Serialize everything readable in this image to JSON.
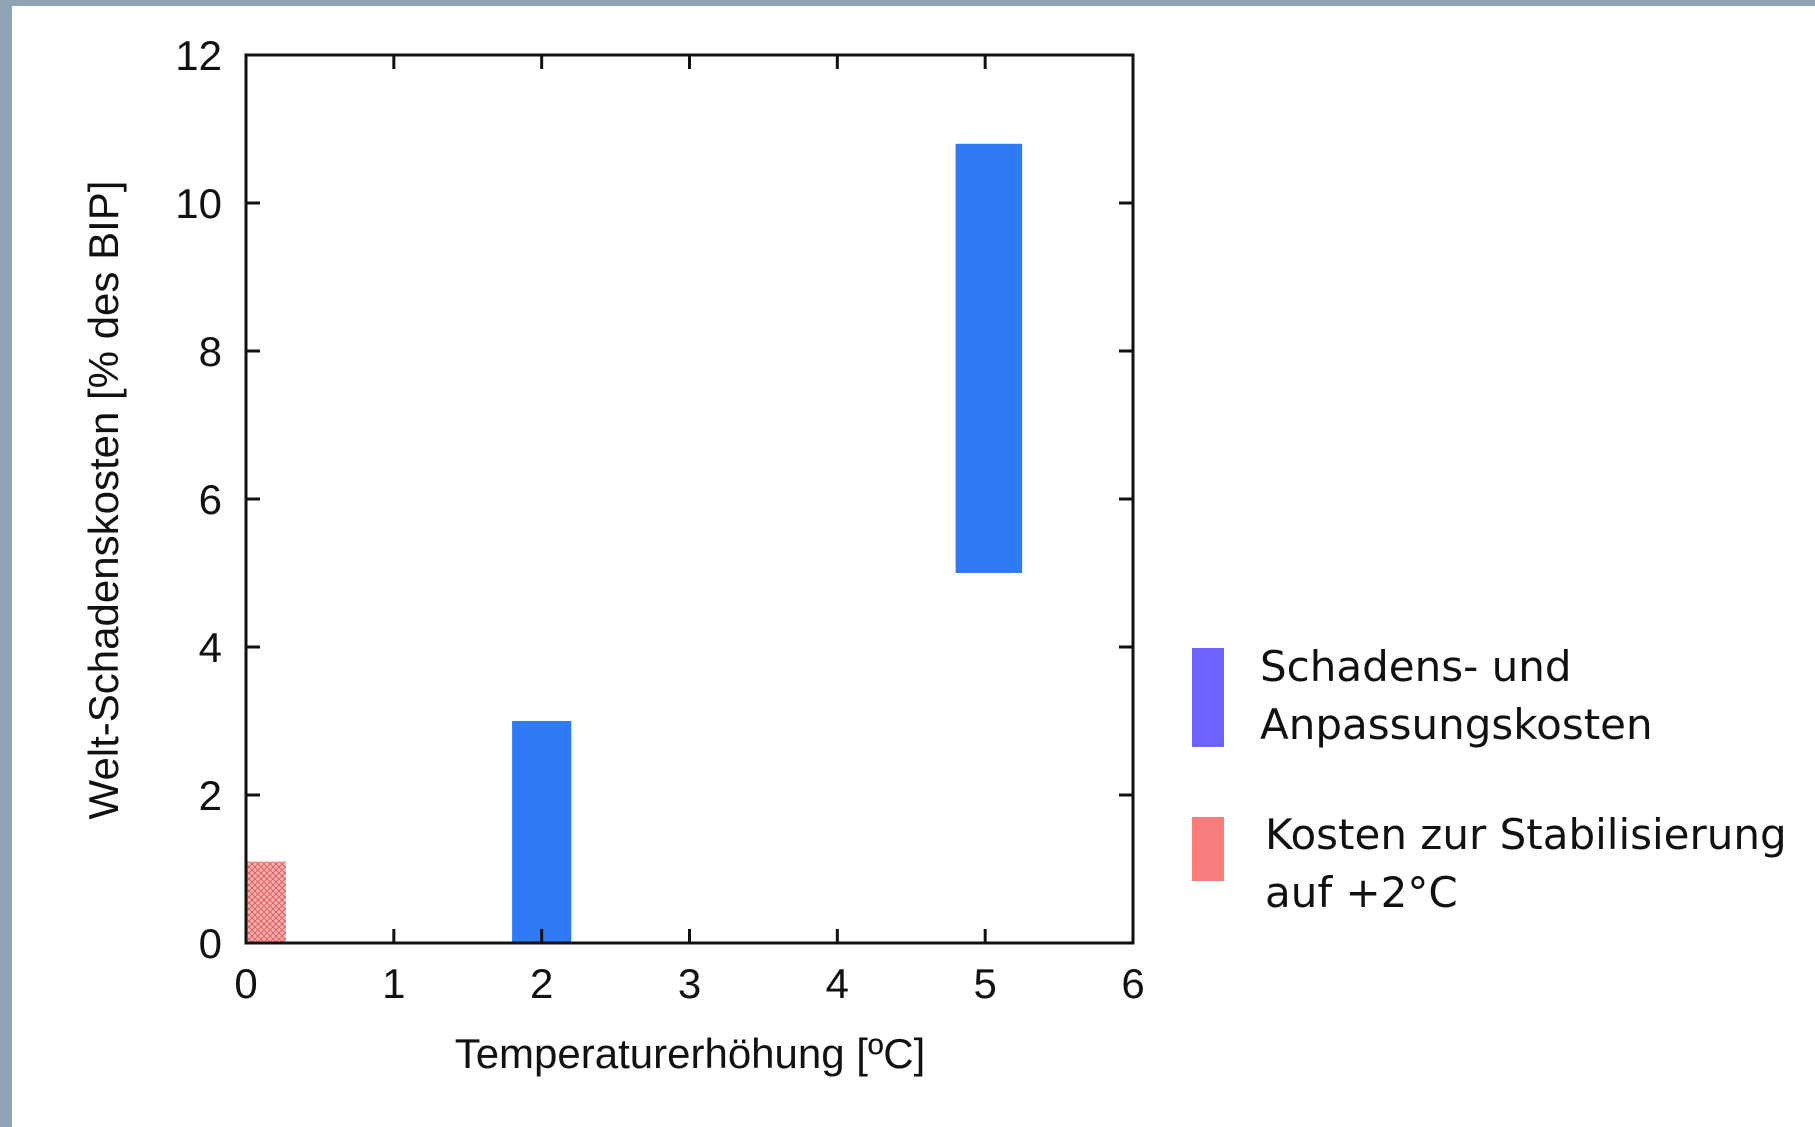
{
  "chart_data": {
    "type": "bar",
    "xlabel": "Temperaturerhöhung [ºC]",
    "ylabel": "Welt-Schadenskosten [% des BIP]",
    "xlim": [
      0,
      6
    ],
    "ylim": [
      0,
      12
    ],
    "xticks": [
      "0",
      "1",
      "2",
      "3",
      "4",
      "5",
      "6"
    ],
    "yticks": [
      "0",
      "2",
      "4",
      "6",
      "8",
      "10",
      "12"
    ],
    "grid": false,
    "legend_position": "right",
    "series": [
      {
        "name": "Schadens- und Anpassungskosten",
        "color": "#2f7bf5",
        "legend_color": "#6f63ff",
        "bars": [
          {
            "x_from": 1.8,
            "x_to": 2.2,
            "y_from": 0,
            "y_to": 3.0
          },
          {
            "x_from": 4.8,
            "x_to": 5.25,
            "y_from": 5.0,
            "y_to": 10.8
          }
        ]
      },
      {
        "name": "Kosten zur Stabilisierung auf +2°C",
        "color": "#f07a7a",
        "legend_color": "#f77c7c",
        "bars": [
          {
            "x_from": 0,
            "x_to": 0.27,
            "y_from": 0,
            "y_to": 1.1
          }
        ]
      }
    ]
  },
  "legend": {
    "item1_line1": "Schadens- und",
    "item1_line2": "Anpassungskosten",
    "item2_line1": "Kosten zur Stabilisierung",
    "item2_line2": "auf +2°C"
  }
}
